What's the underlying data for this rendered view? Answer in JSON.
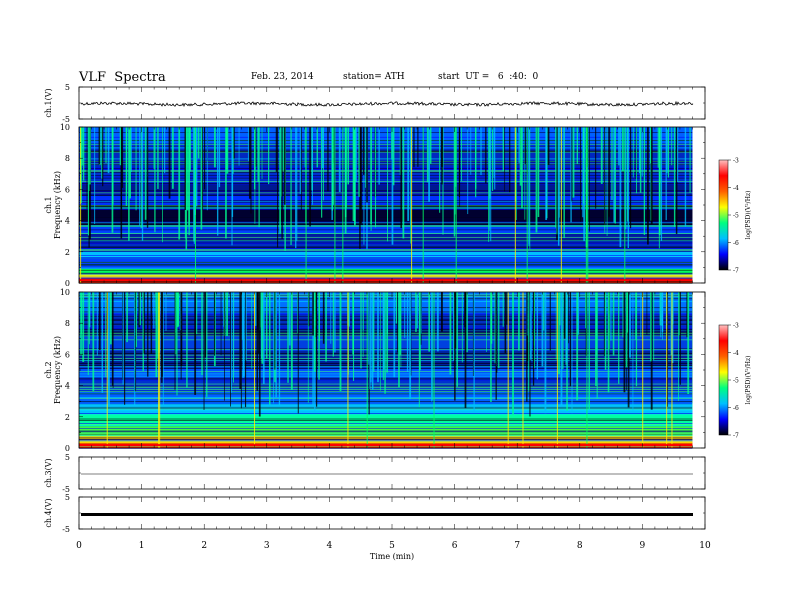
{
  "header": {
    "title": "VLF  Spectra",
    "date": "Feb. 23, 2014",
    "station": "station= ATH",
    "start": "start  UT =   6  :40:  0"
  },
  "chart_data": [
    {
      "type": "line",
      "panel": "ch1-waveform",
      "ylabel": "ch.1(V)",
      "ylim": [
        -5,
        5
      ],
      "yticks": [
        "5",
        "-5"
      ],
      "xlim": [
        0,
        10
      ],
      "description_level": 0,
      "noise_amplitude": 0.35
    },
    {
      "type": "heatmap",
      "panel": "ch1-spectrogram",
      "ylabel_channel": "ch.1",
      "ylabel": "Frequency  (kHz)",
      "ylim": [
        0,
        10
      ],
      "yticks": [
        "0",
        "2",
        "4",
        "6",
        "8",
        "10"
      ],
      "xlim": [
        0,
        9.8
      ],
      "colorbar": {
        "label": "log(PSD)(V²/Hz)",
        "range": [
          -7,
          -3
        ],
        "ticks": [
          "-3",
          "-4",
          "-5",
          "-6",
          "-7"
        ]
      }
    },
    {
      "type": "heatmap",
      "panel": "ch2-spectrogram",
      "ylabel_channel": "ch.2",
      "ylabel": "Frequency  (kHz)",
      "ylim": [
        0,
        10
      ],
      "yticks": [
        "0",
        "2",
        "4",
        "6",
        "8",
        "10"
      ],
      "xlim": [
        0,
        9.8
      ],
      "colorbar": {
        "label": "log(PSD)(V²/Hz)",
        "range": [
          -7,
          -3
        ],
        "ticks": [
          "-3",
          "-4",
          "-5",
          "-6",
          "-7"
        ]
      }
    },
    {
      "type": "line",
      "panel": "ch3-waveform",
      "ylabel": "ch.3(V)",
      "ylim": [
        -5,
        5
      ],
      "yticks": [
        "5",
        "-5"
      ],
      "level": 0
    },
    {
      "type": "line",
      "panel": "ch4-waveform",
      "ylabel": "ch.4(V)",
      "ylim": [
        -5,
        5
      ],
      "yticks": [
        "5",
        "-5"
      ],
      "level": 0
    }
  ],
  "xaxis": {
    "label": "Time  (min)",
    "range": [
      0,
      10
    ],
    "ticks": [
      "0",
      "1",
      "2",
      "3",
      "4",
      "5",
      "6",
      "7",
      "8",
      "9",
      "10"
    ]
  },
  "colors": {
    "colormap": [
      "#000000",
      "#0000ff",
      "#00c0ff",
      "#00ff80",
      "#ffff00",
      "#ff6000",
      "#ff0000",
      "#ffc0c0"
    ]
  }
}
